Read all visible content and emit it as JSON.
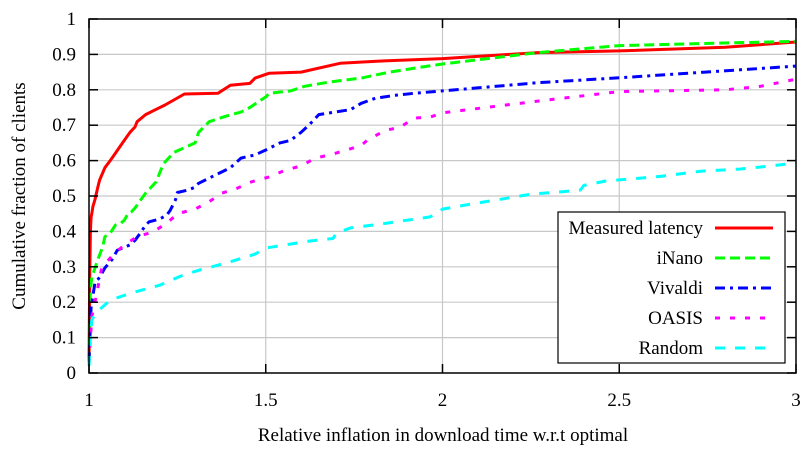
{
  "chart_data": {
    "type": "line",
    "title": "",
    "xlabel": "Relative inflation in download time w.r.t optimal",
    "ylabel": "Cumulative fraction of clients",
    "xlim": [
      1,
      3
    ],
    "ylim": [
      0,
      1
    ],
    "grid": true,
    "legend_position": "lower-right",
    "xticks": [
      1,
      1.5,
      2,
      2.5,
      3
    ],
    "xtick_labels": [
      "1",
      "1.5",
      "2",
      "2.5",
      "3"
    ],
    "yticks": [
      0,
      0.1,
      0.2,
      0.3,
      0.4,
      0.5,
      0.6,
      0.7,
      0.8,
      0.9,
      1
    ],
    "ytick_labels": [
      "0",
      "0.1",
      "0.2",
      "0.3",
      "0.4",
      "0.5",
      "0.6",
      "0.7",
      "0.8",
      "0.9",
      "1"
    ],
    "series": [
      {
        "name": "Measured latency",
        "color": "#ff0000",
        "style": "solid",
        "x": [
          1.0,
          1.002,
          1.004,
          1.006,
          1.008,
          1.011,
          1.017,
          1.025,
          1.03,
          1.045,
          1.06,
          1.074,
          1.09,
          1.116,
          1.13,
          1.136,
          1.16,
          1.19,
          1.215,
          1.27,
          1.365,
          1.4,
          1.455,
          1.47,
          1.51,
          1.6,
          1.71,
          1.82,
          2.0,
          2.27,
          2.5,
          2.8,
          3.0
        ],
        "y": [
          0.03,
          0.27,
          0.4,
          0.44,
          0.45,
          0.47,
          0.49,
          0.525,
          0.545,
          0.58,
          0.6,
          0.62,
          0.643,
          0.68,
          0.695,
          0.71,
          0.73,
          0.745,
          0.757,
          0.788,
          0.79,
          0.813,
          0.818,
          0.833,
          0.847,
          0.85,
          0.875,
          0.881,
          0.888,
          0.905,
          0.91,
          0.92,
          0.935
        ]
      },
      {
        "name": "iNano",
        "color": "#00ff00",
        "style": "dashed",
        "x": [
          1.0,
          1.004,
          1.008,
          1.025,
          1.035,
          1.04,
          1.045,
          1.06,
          1.075,
          1.09,
          1.1,
          1.11,
          1.12,
          1.13,
          1.147,
          1.16,
          1.19,
          1.21,
          1.24,
          1.3,
          1.31,
          1.34,
          1.385,
          1.43,
          1.455,
          1.5,
          1.51,
          1.57,
          1.61,
          1.68,
          1.77,
          1.85,
          1.94,
          2.0,
          2.27,
          2.5,
          3.0
        ],
        "y": [
          0.03,
          0.235,
          0.27,
          0.32,
          0.347,
          0.362,
          0.385,
          0.395,
          0.418,
          0.423,
          0.432,
          0.45,
          0.455,
          0.466,
          0.49,
          0.508,
          0.54,
          0.59,
          0.623,
          0.65,
          0.68,
          0.71,
          0.725,
          0.737,
          0.75,
          0.78,
          0.79,
          0.797,
          0.81,
          0.822,
          0.833,
          0.85,
          0.864,
          0.873,
          0.905,
          0.925,
          0.937
        ]
      },
      {
        "name": "Vivaldi",
        "color": "#0000ff",
        "style": "dashdot",
        "x": [
          1.0,
          1.006,
          1.017,
          1.03,
          1.045,
          1.065,
          1.08,
          1.116,
          1.13,
          1.145,
          1.16,
          1.17,
          1.2,
          1.22,
          1.23,
          1.245,
          1.25,
          1.28,
          1.3,
          1.31,
          1.345,
          1.4,
          1.43,
          1.47,
          1.5,
          1.54,
          1.57,
          1.6,
          1.625,
          1.65,
          1.74,
          1.77,
          1.81,
          1.87,
          1.92,
          2.0,
          2.27,
          2.5,
          3.0
        ],
        "y": [
          0.03,
          0.187,
          0.255,
          0.27,
          0.297,
          0.32,
          0.347,
          0.362,
          0.375,
          0.395,
          0.418,
          0.427,
          0.435,
          0.446,
          0.46,
          0.49,
          0.51,
          0.517,
          0.525,
          0.536,
          0.553,
          0.58,
          0.607,
          0.616,
          0.63,
          0.65,
          0.657,
          0.68,
          0.703,
          0.73,
          0.744,
          0.762,
          0.776,
          0.785,
          0.79,
          0.797,
          0.82,
          0.834,
          0.867
        ]
      },
      {
        "name": "OASIS",
        "color": "#ff00ff",
        "style": "dotted",
        "x": [
          1.0,
          1.008,
          1.02,
          1.036,
          1.068,
          1.1,
          1.136,
          1.18,
          1.22,
          1.25,
          1.3,
          1.34,
          1.375,
          1.415,
          1.46,
          1.51,
          1.555,
          1.6,
          1.64,
          1.68,
          1.72,
          1.77,
          1.79,
          1.84,
          1.88,
          1.92,
          1.965,
          2.0,
          2.27,
          2.5,
          2.8,
          2.9,
          3.0
        ],
        "y": [
          0.03,
          0.16,
          0.215,
          0.297,
          0.334,
          0.362,
          0.385,
          0.398,
          0.423,
          0.45,
          0.463,
          0.484,
          0.508,
          0.52,
          0.54,
          0.554,
          0.573,
          0.585,
          0.607,
          0.616,
          0.627,
          0.643,
          0.66,
          0.686,
          0.694,
          0.72,
          0.723,
          0.735,
          0.768,
          0.795,
          0.8,
          0.81,
          0.83
        ]
      },
      {
        "name": "Random",
        "color": "#00ffff",
        "style": "dashed-long",
        "x": [
          1.0,
          1.004,
          1.008,
          1.02,
          1.06,
          1.12,
          1.2,
          1.26,
          1.31,
          1.4,
          1.47,
          1.5,
          1.625,
          1.69,
          1.7,
          1.74,
          1.82,
          1.965,
          2.0,
          2.08,
          2.16,
          2.25,
          2.35,
          2.39,
          2.4,
          2.46,
          2.53,
          2.62,
          2.73,
          2.84,
          2.93,
          3.0
        ],
        "y": [
          0.02,
          0.1,
          0.15,
          0.17,
          0.206,
          0.226,
          0.248,
          0.274,
          0.29,
          0.314,
          0.336,
          0.353,
          0.373,
          0.38,
          0.395,
          0.41,
          0.42,
          0.441,
          0.463,
          0.477,
          0.49,
          0.505,
          0.513,
          0.517,
          0.53,
          0.542,
          0.548,
          0.556,
          0.57,
          0.576,
          0.585,
          0.593
        ]
      }
    ]
  }
}
